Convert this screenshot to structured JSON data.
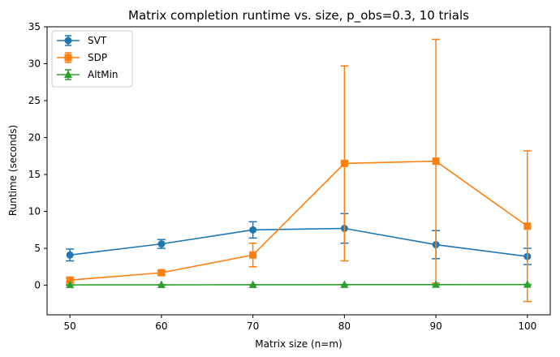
{
  "chart_data": {
    "type": "line",
    "title": "Matrix completion runtime vs. size, p_obs=0.3, 10 trials",
    "xlabel": "Matrix size (n=m)",
    "ylabel": "Runtime (seconds)",
    "x": [
      50,
      60,
      70,
      80,
      90,
      100
    ],
    "xlim": [
      47.5,
      102.5
    ],
    "ylim": [
      -4,
      35
    ],
    "xticks": [
      50,
      60,
      70,
      80,
      90,
      100
    ],
    "yticks": [
      0,
      5,
      10,
      15,
      20,
      25,
      30,
      35
    ],
    "legend_position": "top-left",
    "series": [
      {
        "name": "SVT",
        "color": "#1f77b4",
        "marker": "circle",
        "values": [
          4.1,
          5.6,
          7.5,
          7.7,
          5.5,
          3.9
        ],
        "errors": [
          0.8,
          0.6,
          1.1,
          2.0,
          1.9,
          1.1
        ]
      },
      {
        "name": "SDP",
        "color": "#ff7f0e",
        "marker": "square",
        "values": [
          0.7,
          1.7,
          4.1,
          16.5,
          16.8,
          8.0
        ],
        "errors": [
          0.3,
          0.3,
          1.6,
          13.2,
          16.5,
          10.2
        ]
      },
      {
        "name": "AltMin",
        "color": "#2ca02c",
        "marker": "triangle",
        "values": [
          0.05,
          0.06,
          0.07,
          0.08,
          0.09,
          0.1
        ],
        "errors": [
          0.02,
          0.02,
          0.02,
          0.03,
          0.03,
          0.03
        ]
      }
    ]
  }
}
